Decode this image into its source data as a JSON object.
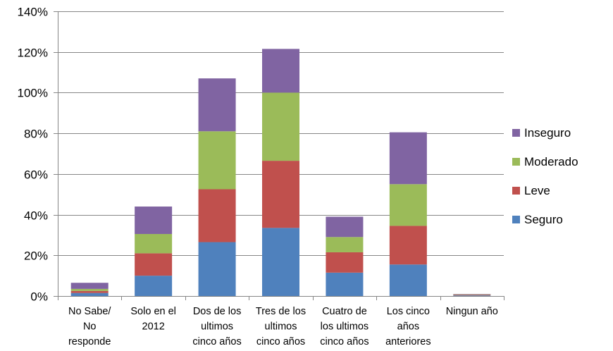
{
  "chart_data": {
    "type": "bar",
    "stacked": true,
    "categories": [
      [
        "No Sabe/",
        "No",
        "responde"
      ],
      [
        "Solo en el",
        "2012"
      ],
      [
        "Dos de los",
        "ultimos",
        "cinco años"
      ],
      [
        "Tres de los",
        "ultimos",
        "cinco años"
      ],
      [
        "Cuatro de",
        "los ultimos",
        "cinco años"
      ],
      [
        "Los cinco",
        "años",
        "anteriores"
      ],
      [
        "Ningun año"
      ]
    ],
    "series": [
      {
        "name": "Seguro",
        "color": "#4F81BD",
        "values": [
          1.5,
          10,
          26.5,
          33.5,
          11.5,
          15.5,
          0.3
        ]
      },
      {
        "name": "Leve",
        "color": "#C0504D",
        "values": [
          1.0,
          11,
          26,
          33,
          10,
          19,
          0.3
        ]
      },
      {
        "name": "Moderado",
        "color": "#9BBB59",
        "values": [
          1.0,
          9.5,
          28.5,
          33.5,
          7.5,
          20.5,
          0.2
        ]
      },
      {
        "name": "Inseguro",
        "color": "#8064A2",
        "values": [
          3.0,
          13.5,
          26,
          21.5,
          10,
          25.5,
          0.2
        ]
      }
    ],
    "yaxis": {
      "min": 0,
      "max": 140,
      "step": 20,
      "tick_labels": [
        "0%",
        "20%",
        "40%",
        "60%",
        "80%",
        "100%",
        "120%",
        "140%"
      ]
    },
    "grid": true,
    "legend": {
      "position": "right",
      "order": [
        "Inseguro",
        "Moderado",
        "Leve",
        "Seguro"
      ]
    },
    "colors": {
      "gridline": "#868686",
      "axis": "#868686"
    }
  }
}
